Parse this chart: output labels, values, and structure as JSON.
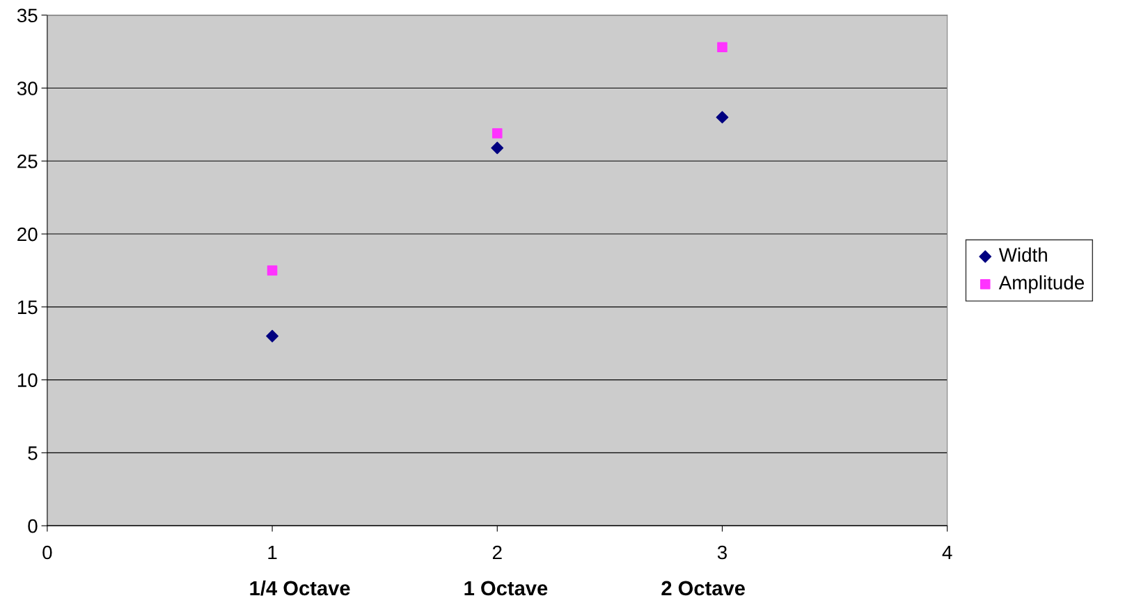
{
  "chart_data": {
    "type": "scatter",
    "xlabel": "1/4 Octave                    1 Octave                    2 Octave",
    "x": [
      1,
      2,
      3
    ],
    "series": [
      {
        "name": "Width",
        "color": "#000080",
        "marker": "diamond",
        "values": [
          13,
          25.9,
          28
        ]
      },
      {
        "name": "Amplitude",
        "color": "#ff33ff",
        "marker": "square",
        "values": [
          17.5,
          26.9,
          32.8
        ]
      }
    ],
    "xlim": [
      0,
      4
    ],
    "xticks": [
      0,
      1,
      2,
      3,
      4
    ],
    "ylim": [
      0,
      35
    ],
    "yticks": [
      0,
      5,
      10,
      15,
      20,
      25,
      30,
      35
    ],
    "grid": "y",
    "legend": "right"
  }
}
